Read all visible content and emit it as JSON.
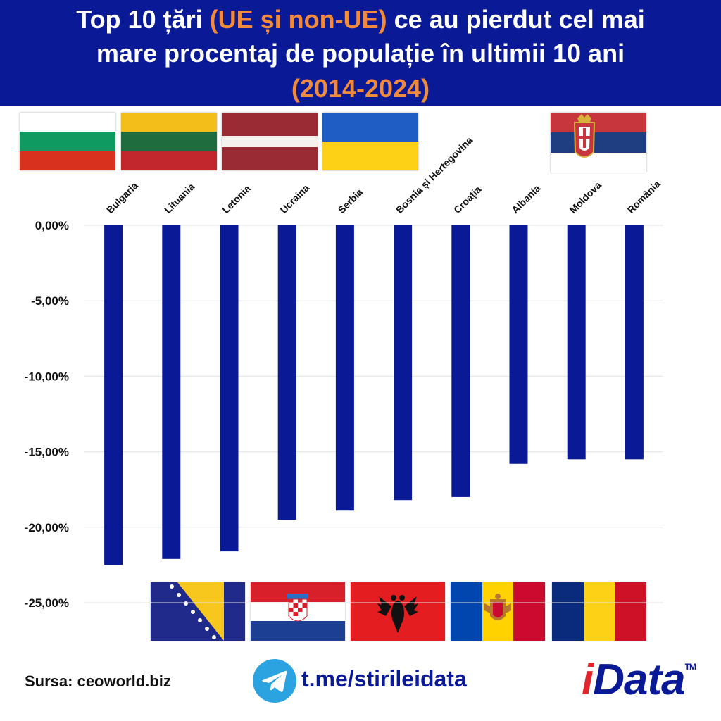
{
  "header": {
    "line1_prefix": "Top 10 țări ",
    "line1_highlight": "(UE și non-UE)",
    "line1_suffix": " ce au pierdut cel mai",
    "line2": "mare procentaj de populație în ultimii 10 ani",
    "line3": "(2014-2024)"
  },
  "colors": {
    "header_bg": "#0a1a96",
    "accent_orange": "#f08a3c",
    "bar": "#0a1a96",
    "grid": "#e2e2e2",
    "logo_red": "#e0262c"
  },
  "chart_data": {
    "type": "bar",
    "title": "Top 10 țări (UE și non-UE) ce au pierdut cel mai mare procentaj de populație în ultimii 10 ani (2014-2024)",
    "categories": [
      "Bulgaria",
      "Lituania",
      "Letonia",
      "Ucraina",
      "Serbia",
      "Bosnia și Hertegovina",
      "Croația",
      "Albania",
      "Moldova",
      "România"
    ],
    "values": [
      -22.5,
      -22.1,
      -21.6,
      -19.5,
      -18.9,
      -18.2,
      -18.0,
      -15.8,
      -15.5,
      -15.5
    ],
    "ytick_values": [
      0,
      -5,
      -10,
      -15,
      -20,
      -25
    ],
    "ytick_labels": [
      "0,00%",
      "-5,00%",
      "-10,00%",
      "-15,00%",
      "-20,00%",
      "-25,00%"
    ],
    "ylim": [
      -25,
      0
    ],
    "xlabel": "",
    "ylabel": "",
    "grid": true,
    "category_label_position": "top"
  },
  "flags_top": [
    "bulgaria-flag",
    "lithuania-flag",
    "latvia-flag",
    "ukraine-flag",
    "serbia-flag"
  ],
  "flags_bottom": [
    "bosnia-flag",
    "croatia-flag",
    "albania-flag",
    "moldova-flag",
    "romania-flag"
  ],
  "footer": {
    "source": "Sursa: ceoworld.biz",
    "telegram": "t.me/stirileidata",
    "logo_i": "i",
    "logo_rest": "Data",
    "logo_tm": "TM"
  }
}
